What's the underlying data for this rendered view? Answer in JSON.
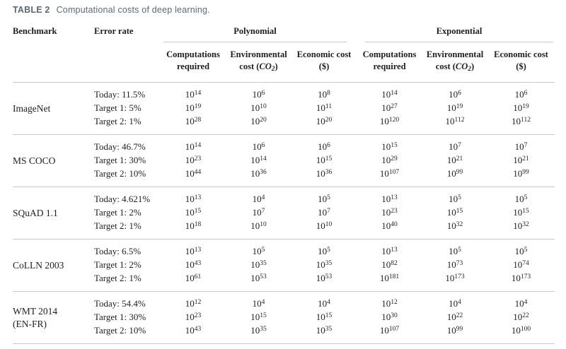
{
  "title": {
    "label": "TABLE 2",
    "text": "Computational costs of deep learning."
  },
  "columns": {
    "benchmark": "Benchmark",
    "error_rate": "Error rate",
    "groups": [
      {
        "label": "Polynomial",
        "subcolumns": [
          {
            "line1": "Computations",
            "line2": "required"
          },
          {
            "line1": "Environmental",
            "line2": "cost (CO2)"
          },
          {
            "line1": "Economic cost",
            "line2": "($)"
          }
        ]
      },
      {
        "label": "Exponential",
        "subcolumns": [
          {
            "line1": "Computations",
            "line2": "required"
          },
          {
            "line1": "Environmental",
            "line2": "cost (CO2)"
          },
          {
            "line1": "Economic cost",
            "line2": "($)"
          }
        ]
      }
    ]
  },
  "rows": [
    {
      "benchmark": [
        "ImageNet"
      ],
      "entries": [
        {
          "error_rate": "Today: 11.5%",
          "polynomial": [
            "10^14",
            "10^6",
            "10^8"
          ],
          "exponential": [
            "10^14",
            "10^6",
            "10^6"
          ]
        },
        {
          "error_rate": "Target 1: 5%",
          "polynomial": [
            "10^19",
            "10^10",
            "10^11"
          ],
          "exponential": [
            "10^27",
            "10^19",
            "10^19"
          ]
        },
        {
          "error_rate": "Target 2: 1%",
          "polynomial": [
            "10^28",
            "10^20",
            "10^20"
          ],
          "exponential": [
            "10^120",
            "10^112",
            "10^112"
          ]
        }
      ]
    },
    {
      "benchmark": [
        "MS COCO"
      ],
      "entries": [
        {
          "error_rate": "Today: 46.7%",
          "polynomial": [
            "10^14",
            "10^6",
            "10^6"
          ],
          "exponential": [
            "10^15",
            "10^7",
            "10^7"
          ]
        },
        {
          "error_rate": "Target 1: 30%",
          "polynomial": [
            "10^23",
            "10^14",
            "10^15"
          ],
          "exponential": [
            "10^29",
            "10^21",
            "10^21"
          ]
        },
        {
          "error_rate": "Target 2: 10%",
          "polynomial": [
            "10^44",
            "10^36",
            "10^36"
          ],
          "exponential": [
            "10^107",
            "10^99",
            "10^99"
          ]
        }
      ]
    },
    {
      "benchmark": [
        "SQuAD 1.1"
      ],
      "entries": [
        {
          "error_rate": "Today: 4.621%",
          "polynomial": [
            "10^13",
            "10^4",
            "10^5"
          ],
          "exponential": [
            "10^13",
            "10^5",
            "10^5"
          ]
        },
        {
          "error_rate": "Target 1: 2%",
          "polynomial": [
            "10^15",
            "10^7",
            "10^7"
          ],
          "exponential": [
            "10^23",
            "10^15",
            "10^15"
          ]
        },
        {
          "error_rate": "Target 2: 1%",
          "polynomial": [
            "10^18",
            "10^10",
            "10^10"
          ],
          "exponential": [
            "10^40",
            "10^32",
            "10^32"
          ]
        }
      ]
    },
    {
      "benchmark": [
        "CoLLN 2003"
      ],
      "entries": [
        {
          "error_rate": "Today: 6.5%",
          "polynomial": [
            "10^13",
            "10^5",
            "10^5"
          ],
          "exponential": [
            "10^13",
            "10^5",
            "10^5"
          ]
        },
        {
          "error_rate": "Target 1: 2%",
          "polynomial": [
            "10^43",
            "10^35",
            "10^35"
          ],
          "exponential": [
            "10^82",
            "10^73",
            "10^74"
          ]
        },
        {
          "error_rate": "Target 2: 1%",
          "polynomial": [
            "10^61",
            "10^53",
            "10^53"
          ],
          "exponential": [
            "10^181",
            "10^173",
            "10^173"
          ]
        }
      ]
    },
    {
      "benchmark": [
        "WMT 2014",
        "(EN-FR)"
      ],
      "entries": [
        {
          "error_rate": "Today: 54.4%",
          "polynomial": [
            "10^12",
            "10^4",
            "10^4"
          ],
          "exponential": [
            "10^12",
            "10^4",
            "10^4"
          ]
        },
        {
          "error_rate": "Target 1: 30%",
          "polynomial": [
            "10^23",
            "10^15",
            "10^15"
          ],
          "exponential": [
            "10^30",
            "10^22",
            "10^22"
          ]
        },
        {
          "error_rate": "Target 2: 10%",
          "polynomial": [
            "10^43",
            "10^35",
            "10^35"
          ],
          "exponential": [
            "10^107",
            "10^99",
            "10^100"
          ]
        }
      ]
    }
  ],
  "colors": {
    "caption": "#5c6a70",
    "text": "#1e1e1e",
    "rule": "#c9c9c9"
  }
}
